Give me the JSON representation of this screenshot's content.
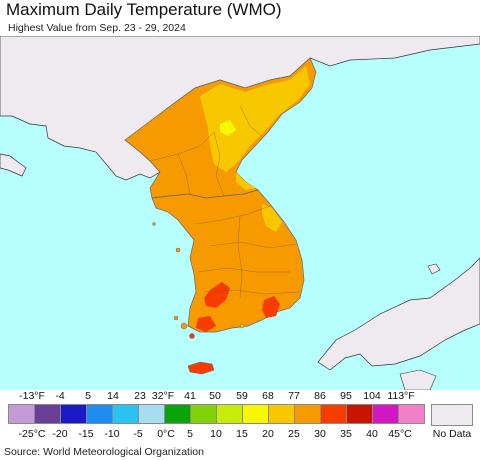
{
  "title": "Maximum Daily Temperature (WMO)",
  "subtitle": "Highest Value from Sep. 23 - 29, 2024",
  "source": "Source: World Meteorological Organization",
  "legend": {
    "fahrenheit_ticks": [
      "-13°F",
      "-4",
      "5",
      "14",
      "23",
      "32°F",
      "41",
      "50",
      "59",
      "68",
      "77",
      "86",
      "95",
      "104",
      "113°F"
    ],
    "celsius_ticks": [
      "-25°C",
      "-20",
      "-15",
      "-10",
      "-5",
      "0°C",
      "5",
      "10",
      "15",
      "20",
      "25",
      "30",
      "35",
      "40",
      "45°C"
    ],
    "colors": [
      "#c39ad6",
      "#6a3f9a",
      "#1a1ac8",
      "#1e8ef2",
      "#29c3f2",
      "#a8dcf0",
      "#0ba30b",
      "#82d20a",
      "#c8ec0a",
      "#f7f700",
      "#f7c800",
      "#f79a00",
      "#f73c00",
      "#c81400",
      "#d218c3",
      "#f27fc8"
    ],
    "no_data_label": "No Data",
    "no_data_color": "#efeaf0"
  },
  "map": {
    "sea_color": "#b7ffff",
    "land_nodata_color": "#efeaf0",
    "korea_base_color": "#f79a00",
    "north_highlands_color": "#f7c800",
    "peak_color": "#f7f700",
    "hot_spot_color": "#f73c00"
  }
}
